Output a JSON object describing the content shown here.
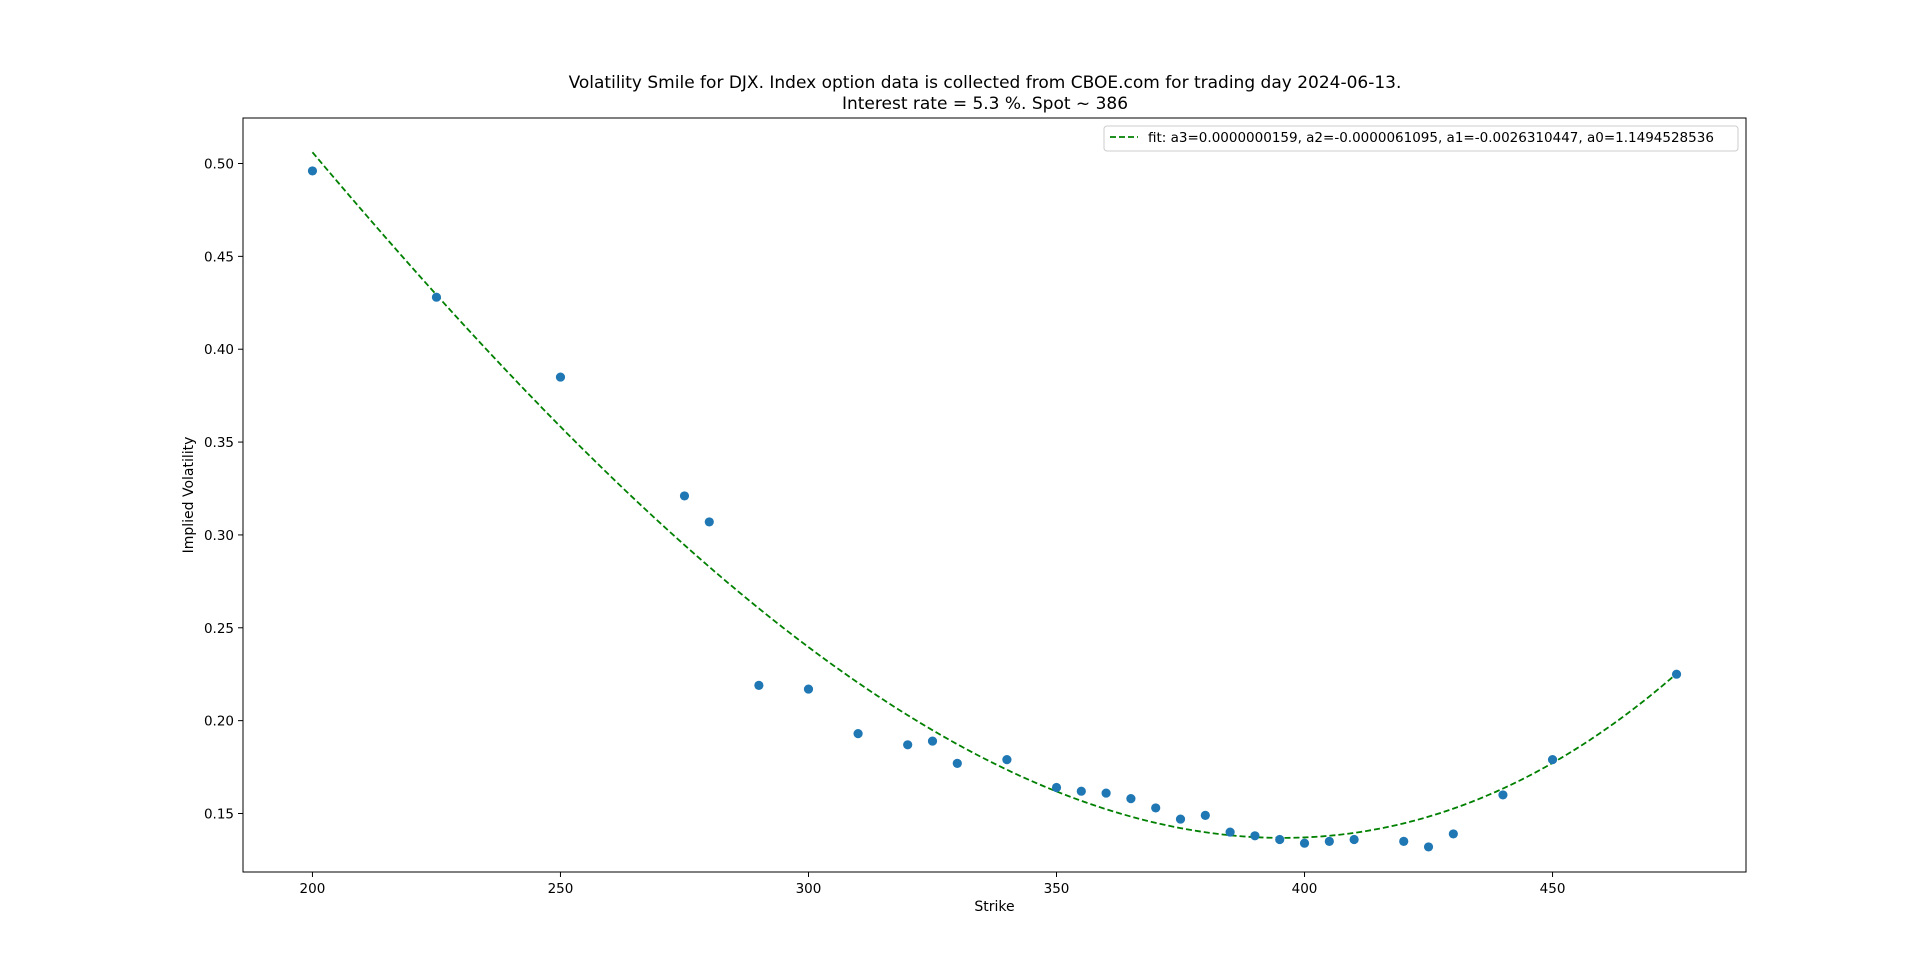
{
  "chart_data": {
    "type": "scatter",
    "title_line1": "Volatility Smile for DJX. Index option data is collected from CBOE.com for trading day 2024-06-13.",
    "title_line2": "Interest rate = 5.3 %. Spot ~ 386",
    "xlabel": "Strike",
    "ylabel": "Implied Volatility",
    "xlim": [
      186,
      489
    ],
    "ylim": [
      0.1185,
      0.5245
    ],
    "xticks": [
      200,
      250,
      300,
      350,
      400,
      450
    ],
    "yticks": [
      0.15,
      0.2,
      0.25,
      0.3,
      0.35,
      0.4,
      0.45,
      0.5
    ],
    "grid": false,
    "legend_position": "top-right",
    "colors": {
      "points": "#1f77b4",
      "fit": "#008000"
    },
    "points": {
      "x": [
        200,
        225,
        250,
        275,
        280,
        290,
        300,
        310,
        320,
        325,
        330,
        340,
        350,
        355,
        360,
        365,
        370,
        375,
        380,
        385,
        390,
        395,
        400,
        405,
        410,
        420,
        425,
        430,
        440,
        450,
        475
      ],
      "y": [
        0.496,
        0.428,
        0.385,
        0.321,
        0.307,
        0.219,
        0.217,
        0.193,
        0.187,
        0.189,
        0.177,
        0.179,
        0.164,
        0.162,
        0.161,
        0.158,
        0.153,
        0.147,
        0.149,
        0.14,
        0.138,
        0.136,
        0.134,
        0.135,
        0.136,
        0.135,
        0.132,
        0.139,
        0.16,
        0.179,
        0.225
      ]
    },
    "fit": {
      "label": "fit: a3=0.0000000159, a2=-0.0000061095, a1=-0.0026310447, a0=1.1494528536",
      "a3": 1.59e-08,
      "a2": -6.1095e-06,
      "a1": -0.0026310447,
      "a0": 1.1494528536,
      "x_range": [
        200,
        475
      ]
    }
  }
}
